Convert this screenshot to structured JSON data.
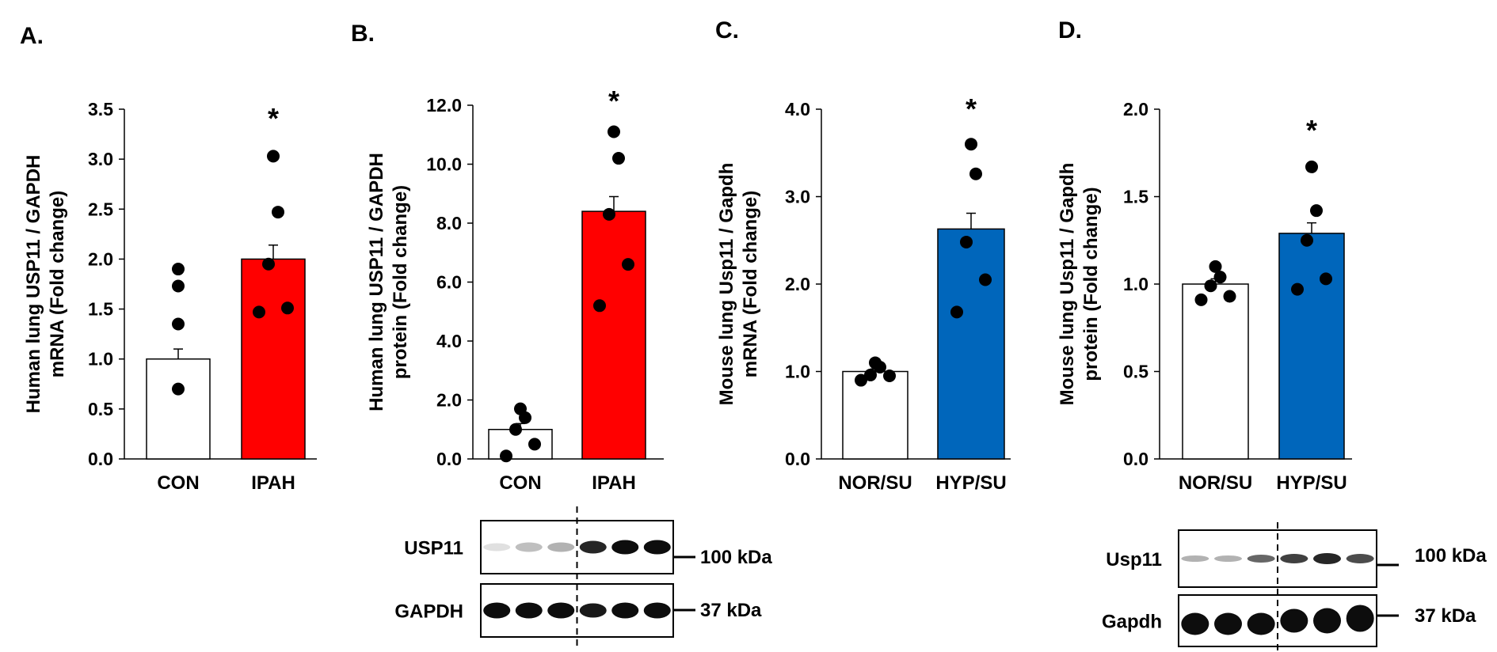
{
  "chart_data": [
    {
      "panel": "A.",
      "type": "bar",
      "ylabel": [
        "Human lung USP11 / GAPDH",
        "mRNA (Fold change)"
      ],
      "ylim": [
        0,
        3.5
      ],
      "yticks": [
        "0.0",
        "0.5",
        "1.0",
        "1.5",
        "2.0",
        "2.5",
        "3.0",
        "3.5"
      ],
      "categories": [
        "CON",
        "IPAH"
      ],
      "values": [
        1.0,
        2.0
      ],
      "errors": [
        0.1,
        0.14
      ],
      "bar_colors": [
        "#ffffff",
        "#ff0000"
      ],
      "points": [
        [
          0.7,
          1.35,
          1.73,
          1.9
        ],
        [
          1.47,
          1.51,
          1.95,
          2.47,
          3.03
        ]
      ],
      "annotation": "*"
    },
    {
      "panel": "B.",
      "type": "bar",
      "ylabel": [
        "Human lung USP11 / GAPDH",
        "protein (Fold change)"
      ],
      "ylim": [
        0,
        12
      ],
      "yticks": [
        "0.0",
        "2.0",
        "4.0",
        "6.0",
        "8.0",
        "10.0",
        "12.0"
      ],
      "categories": [
        "CON",
        "IPAH"
      ],
      "values": [
        1.0,
        8.4
      ],
      "errors": [
        0.2,
        0.5
      ],
      "bar_colors": [
        "#ffffff",
        "#ff0000"
      ],
      "points": [
        [
          0.1,
          0.5,
          1.0,
          1.4,
          1.7
        ],
        [
          5.2,
          6.6,
          8.3,
          10.2,
          11.1
        ]
      ],
      "annotation": "*",
      "blot": {
        "rows": [
          {
            "label": "USP11",
            "marker": "100 kDa"
          },
          {
            "label": "GAPDH",
            "marker": "37 kDa"
          }
        ]
      }
    },
    {
      "panel": "C.",
      "type": "bar",
      "ylabel": [
        "Mouse lung Usp11 / Gapdh",
        "mRNA (Fold change)"
      ],
      "ylim": [
        0,
        4
      ],
      "yticks": [
        "0.0",
        "1.0",
        "2.0",
        "3.0",
        "4.0"
      ],
      "categories": [
        "NOR/SU",
        "HYP/SU"
      ],
      "values": [
        1.0,
        2.63
      ],
      "errors": [
        0.03,
        0.18
      ],
      "bar_colors": [
        "#ffffff",
        "#0066bb"
      ],
      "points": [
        [
          0.9,
          0.95,
          0.96,
          1.05,
          1.1
        ],
        [
          1.68,
          2.05,
          2.48,
          3.26,
          3.6
        ]
      ],
      "annotation": "*"
    },
    {
      "panel": "D.",
      "type": "bar",
      "ylabel": [
        "Mouse lung Usp11 / Gapdh",
        "protein (Fold change)"
      ],
      "ylim": [
        0,
        2
      ],
      "yticks": [
        "0.0",
        "0.5",
        "1.0",
        "1.5",
        "2.0"
      ],
      "categories": [
        "NOR/SU",
        "HYP/SU"
      ],
      "values": [
        1.0,
        1.29
      ],
      "errors": [
        0.03,
        0.06
      ],
      "bar_colors": [
        "#ffffff",
        "#0066bb"
      ],
      "points": [
        [
          0.91,
          0.93,
          0.99,
          1.04,
          1.1
        ],
        [
          0.97,
          1.03,
          1.25,
          1.42,
          1.67
        ]
      ],
      "annotation": "*",
      "blot": {
        "rows": [
          {
            "label": "Usp11",
            "marker": "100 kDa"
          },
          {
            "label": "Gapdh",
            "marker": "37 kDa"
          }
        ]
      }
    }
  ]
}
